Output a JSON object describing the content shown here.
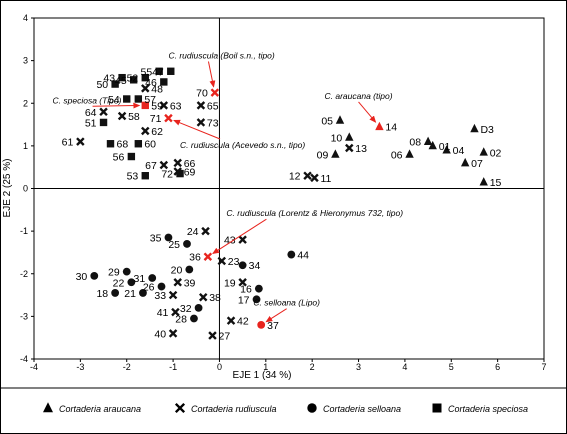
{
  "chart_data": {
    "type": "scatter",
    "xlabel": "EJE 1 (34 %)",
    "ylabel": "EJE 2 (25 %)",
    "xlim": [
      -4,
      7
    ],
    "ylim": [
      -4,
      4
    ],
    "xticks": [
      -4,
      -3,
      -2,
      -1,
      0,
      1,
      2,
      3,
      4,
      5,
      6,
      7
    ],
    "yticks": [
      4,
      3,
      2,
      1,
      0,
      -1,
      -2,
      -3,
      -4
    ],
    "grid": false,
    "zero_lines": true,
    "legend_position": "bottom",
    "legend": [
      {
        "marker": "triangle",
        "label": "Cortaderia araucana"
      },
      {
        "marker": "cross",
        "label": "Cortaderia rudiuscula"
      },
      {
        "marker": "circle",
        "label": "Cortaderia selloana"
      },
      {
        "marker": "square",
        "label": "Cortaderia speciosa"
      }
    ],
    "series": [
      {
        "marker": "triangle",
        "points": [
          {
            "label": "D3",
            "x": 5.5,
            "y": 1.4
          },
          {
            "label": "05",
            "x": 2.6,
            "y": 1.6
          },
          {
            "label": "10",
            "x": 2.8,
            "y": 1.2
          },
          {
            "label": "09",
            "x": 2.5,
            "y": 0.8
          },
          {
            "label": "08",
            "x": 4.5,
            "y": 1.1
          },
          {
            "label": "01",
            "x": 4.6,
            "y": 1.0
          },
          {
            "label": "06",
            "x": 4.1,
            "y": 0.8
          },
          {
            "label": "04",
            "x": 4.9,
            "y": 0.9
          },
          {
            "label": "02",
            "x": 5.7,
            "y": 0.85
          },
          {
            "label": "07",
            "x": 5.3,
            "y": 0.6
          },
          {
            "label": "15",
            "x": 5.7,
            "y": 0.15
          }
        ]
      },
      {
        "marker": "cross",
        "points": [
          {
            "label": "48",
            "x": -1.6,
            "y": 2.35
          },
          {
            "label": "63",
            "x": -1.2,
            "y": 1.95
          },
          {
            "label": "65",
            "x": -0.4,
            "y": 1.95
          },
          {
            "label": "58",
            "x": -2.1,
            "y": 1.7
          },
          {
            "label": "64",
            "x": -2.5,
            "y": 1.8
          },
          {
            "label": "73",
            "x": -0.4,
            "y": 1.55
          },
          {
            "label": "62",
            "x": -1.6,
            "y": 1.35
          },
          {
            "label": "61",
            "x": -3.0,
            "y": 1.1
          },
          {
            "label": "67",
            "x": -1.2,
            "y": 0.55
          },
          {
            "label": "66",
            "x": -0.9,
            "y": 0.6
          },
          {
            "label": "69",
            "x": -0.9,
            "y": 0.4
          },
          {
            "label": "13",
            "x": 2.8,
            "y": 0.95
          },
          {
            "label": "12",
            "x": 1.9,
            "y": 0.3
          },
          {
            "label": "11",
            "x": 2.05,
            "y": 0.25
          },
          {
            "label": "24",
            "x": -0.3,
            "y": -1.0
          },
          {
            "label": "43",
            "x": 0.5,
            "y": -1.2
          },
          {
            "label": "23",
            "x": 0.05,
            "y": -1.7
          },
          {
            "label": "39",
            "x": -0.9,
            "y": -2.2
          },
          {
            "label": "19",
            "x": 0.5,
            "y": -2.2
          },
          {
            "label": "33",
            "x": -1.0,
            "y": -2.5
          },
          {
            "label": "38",
            "x": -0.35,
            "y": -2.55
          },
          {
            "label": "41",
            "x": -0.95,
            "y": -2.9
          },
          {
            "label": "42",
            "x": 0.25,
            "y": -3.1
          },
          {
            "label": "40",
            "x": -1.0,
            "y": -3.4
          },
          {
            "label": "27",
            "x": -0.15,
            "y": -3.45
          }
        ]
      },
      {
        "marker": "circle",
        "points": [
          {
            "label": "35",
            "x": -1.1,
            "y": -1.15
          },
          {
            "label": "25",
            "x": -0.7,
            "y": -1.3
          },
          {
            "label": "44",
            "x": 1.55,
            "y": -1.55
          },
          {
            "label": "20",
            "x": -0.65,
            "y": -1.9
          },
          {
            "label": "34",
            "x": 0.5,
            "y": -1.8
          },
          {
            "label": "29",
            "x": -2.0,
            "y": -1.95
          },
          {
            "label": "30",
            "x": -2.7,
            "y": -2.05
          },
          {
            "label": "31",
            "x": -1.45,
            "y": -2.1
          },
          {
            "label": "22",
            "x": -1.9,
            "y": -2.2
          },
          {
            "label": "26",
            "x": -1.25,
            "y": -2.3
          },
          {
            "label": "16",
            "x": 0.85,
            "y": -2.35
          },
          {
            "label": "21",
            "x": -1.65,
            "y": -2.45
          },
          {
            "label": "18",
            "x": -2.25,
            "y": -2.45
          },
          {
            "label": "17",
            "x": 0.8,
            "y": -2.6
          },
          {
            "label": "32",
            "x": -0.45,
            "y": -2.8
          },
          {
            "label": "28",
            "x": -0.55,
            "y": -3.05
          }
        ]
      },
      {
        "marker": "square",
        "points": [
          {
            "label": "52",
            "x": -1.6,
            "y": 2.6
          },
          {
            "label": "55",
            "x": -1.3,
            "y": 2.75
          },
          {
            "label": "47",
            "x": -1.05,
            "y": 2.75
          },
          {
            "label": "45",
            "x": -1.85,
            "y": 2.55
          },
          {
            "label": "43",
            "x": -2.1,
            "y": 2.6
          },
          {
            "label": "46",
            "x": -1.2,
            "y": 2.5
          },
          {
            "label": "50",
            "x": -2.25,
            "y": 2.45
          },
          {
            "label": "54",
            "x": -2.0,
            "y": 2.1
          },
          {
            "label": "57",
            "x": -1.75,
            "y": 2.1
          },
          {
            "label": "51",
            "x": -2.5,
            "y": 1.55
          },
          {
            "label": "68",
            "x": -2.35,
            "y": 1.05
          },
          {
            "label": "60",
            "x": -1.75,
            "y": 1.05
          },
          {
            "label": "56",
            "x": -1.9,
            "y": 0.75
          },
          {
            "label": "53",
            "x": -1.6,
            "y": 0.3
          },
          {
            "label": "72",
            "x": -0.85,
            "y": 0.35
          }
        ]
      }
    ],
    "type_specimens": [
      {
        "marker": "triangle",
        "label": "14",
        "x": 3.45,
        "y": 1.45
      },
      {
        "marker": "cross",
        "label": "70",
        "x": -0.1,
        "y": 2.25
      },
      {
        "marker": "cross",
        "label": "71",
        "x": -1.1,
        "y": 1.65
      },
      {
        "marker": "cross",
        "label": "36",
        "x": -0.25,
        "y": -1.6
      },
      {
        "marker": "square",
        "label": "59",
        "x": -1.6,
        "y": 1.95
      },
      {
        "marker": "circle",
        "label": "37",
        "x": 0.9,
        "y": -3.2
      }
    ],
    "type_color": "#e8241e",
    "annotations": [
      {
        "text": "C. rudiuscula (Boil s.n., tipo)",
        "x": -1.1,
        "y": 3.05,
        "anchor": "start",
        "to": [
          -0.1,
          2.25
        ]
      },
      {
        "text": "C. speciosa (Tipo)",
        "x": -3.6,
        "y": 2.0,
        "anchor": "start",
        "to": [
          -1.6,
          1.95
        ]
      },
      {
        "text": "C. araucana (tipo)",
        "x": 3.0,
        "y": 2.1,
        "anchor": "middle",
        "to": [
          3.45,
          1.45
        ]
      },
      {
        "text": "C. rudiuscula (Acevedo s.n., tipo)",
        "x": -0.85,
        "y": 0.95,
        "anchor": "start",
        "to": [
          -1.1,
          1.65
        ]
      },
      {
        "text": "C. rudiuscula (Lorentz & Hieronymus 732, tipo)",
        "x": 0.15,
        "y": -0.65,
        "anchor": "start",
        "to": [
          -0.25,
          -1.6
        ]
      },
      {
        "text": "C. selloana (Lipo)",
        "x": 1.45,
        "y": -2.75,
        "anchor": "middle",
        "to": [
          0.9,
          -3.2
        ]
      }
    ]
  }
}
